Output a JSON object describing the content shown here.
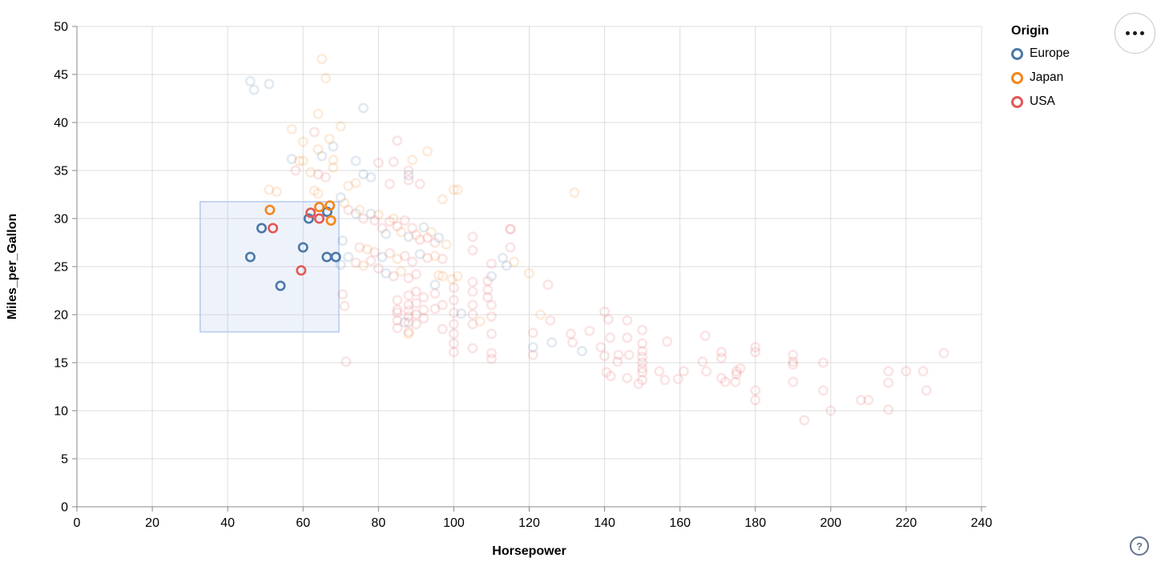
{
  "chart_data": {
    "type": "scatter",
    "title": "",
    "xlabel": "Horsepower",
    "ylabel": "Miles_per_Gallon",
    "xlim": [
      0,
      240
    ],
    "ylim": [
      0,
      50
    ],
    "xticks": [
      0,
      20,
      40,
      60,
      80,
      100,
      120,
      140,
      160,
      180,
      200,
      220,
      240
    ],
    "yticks": [
      0,
      5,
      10,
      15,
      20,
      25,
      30,
      35,
      40,
      45,
      50
    ],
    "grid": true,
    "legend": {
      "title": "Origin",
      "position": "top-right",
      "entries": [
        {
          "label": "Europe",
          "color": "#4c78a8"
        },
        {
          "label": "Japan",
          "color": "#f58518"
        },
        {
          "label": "USA",
          "color": "#e45756"
        }
      ]
    },
    "brush": {
      "x": [
        32.7,
        69.5
      ],
      "y": [
        18.2,
        31.75
      ]
    },
    "point_style": {
      "shape": "open-circle",
      "radius": 5.2,
      "stroke_width": 2.6,
      "selected_opacity": 1.0,
      "unselected_opacity": 0.16
    },
    "series": [
      {
        "name": "Europe",
        "color": "#4c78a8",
        "selected": [
          [
            46,
            26
          ],
          [
            49,
            29
          ],
          [
            54,
            23
          ],
          [
            60,
            27
          ],
          [
            61.5,
            30
          ],
          [
            66.4,
            30.7
          ],
          [
            66.3,
            26
          ],
          [
            68.7,
            26
          ]
        ],
        "unselected": [
          [
            46,
            44.3
          ],
          [
            47,
            43.4
          ],
          [
            51,
            44
          ],
          [
            76,
            41.5
          ],
          [
            68,
            37.5
          ],
          [
            57,
            36.2
          ],
          [
            65,
            36.5
          ],
          [
            74,
            36
          ],
          [
            78,
            34.3
          ],
          [
            88,
            34.5
          ],
          [
            76,
            34.6
          ],
          [
            70,
            32.2
          ],
          [
            74,
            30.5
          ],
          [
            78,
            30.5
          ],
          [
            82,
            28.4
          ],
          [
            88,
            28.1
          ],
          [
            92,
            29.1
          ],
          [
            96,
            28
          ],
          [
            81,
            26
          ],
          [
            91,
            26.3
          ],
          [
            72,
            26
          ],
          [
            82,
            24.3
          ],
          [
            95,
            23.1
          ],
          [
            102,
            20.1
          ],
          [
            87,
            19.2
          ],
          [
            113,
            25.9
          ],
          [
            114,
            25.1
          ],
          [
            110,
            24
          ],
          [
            121,
            16.6
          ],
          [
            126,
            17.1
          ],
          [
            134,
            16.2
          ],
          [
            70,
            25.2
          ],
          [
            70.5,
            27.7
          ]
        ]
      },
      {
        "name": "Japan",
        "color": "#f58518",
        "selected": [
          [
            51.2,
            30.9
          ],
          [
            64.3,
            31.2
          ],
          [
            67.1,
            31.35
          ],
          [
            67.4,
            29.8
          ]
        ],
        "unselected": [
          [
            65,
            46.6
          ],
          [
            66,
            44.6
          ],
          [
            64,
            40.9
          ],
          [
            57,
            39.3
          ],
          [
            60,
            38
          ],
          [
            70,
            39.6
          ],
          [
            67,
            38.3
          ],
          [
            64,
            37.2
          ],
          [
            60,
            36
          ],
          [
            59,
            36
          ],
          [
            62,
            34.8
          ],
          [
            68,
            35.3
          ],
          [
            68,
            36.1
          ],
          [
            93,
            37
          ],
          [
            89,
            36.1
          ],
          [
            74,
            33.7
          ],
          [
            72,
            33.4
          ],
          [
            51,
            33
          ],
          [
            53,
            32.8
          ],
          [
            63,
            32.9
          ],
          [
            64,
            32.6
          ],
          [
            100,
            33
          ],
          [
            132,
            32.7
          ],
          [
            97,
            32
          ],
          [
            101,
            33
          ],
          [
            71,
            31.6
          ],
          [
            75,
            30.9
          ],
          [
            80,
            30.4
          ],
          [
            84,
            30
          ],
          [
            86,
            28.6
          ],
          [
            90,
            28.3
          ],
          [
            94,
            28.6
          ],
          [
            77,
            26.8
          ],
          [
            85,
            25.8
          ],
          [
            95,
            26.1
          ],
          [
            76,
            25.1
          ],
          [
            86,
            24.5
          ],
          [
            96,
            24.1
          ],
          [
            97,
            24
          ],
          [
            101,
            24
          ],
          [
            116,
            25.5
          ],
          [
            120,
            24.3
          ],
          [
            123,
            20
          ],
          [
            107,
            19.3
          ],
          [
            88,
            18
          ],
          [
            98,
            27.3
          ],
          [
            99.5,
            23.7
          ]
        ]
      },
      {
        "name": "USA",
        "color": "#e45756",
        "selected": [
          [
            52,
            29
          ],
          [
            59.5,
            24.6
          ],
          [
            62,
            30.6
          ],
          [
            64.3,
            30
          ]
        ],
        "unselected": [
          [
            63,
            39
          ],
          [
            85,
            38.1
          ],
          [
            80,
            35.8
          ],
          [
            84,
            35.9
          ],
          [
            88,
            35
          ],
          [
            83,
            33.6
          ],
          [
            91,
            33.6
          ],
          [
            88,
            34
          ],
          [
            58,
            35
          ],
          [
            64,
            34.6
          ],
          [
            66,
            34.3
          ],
          [
            72,
            30.9
          ],
          [
            76,
            30
          ],
          [
            79,
            29.8
          ],
          [
            81,
            29
          ],
          [
            83,
            29.7
          ],
          [
            85,
            29.2
          ],
          [
            87,
            29.8
          ],
          [
            89,
            29
          ],
          [
            91,
            27.8
          ],
          [
            93,
            28
          ],
          [
            95,
            27.5
          ],
          [
            75,
            27
          ],
          [
            79,
            26.5
          ],
          [
            83,
            26.4
          ],
          [
            87,
            26.1
          ],
          [
            89,
            25.5
          ],
          [
            93,
            25.9
          ],
          [
            97,
            25.8
          ],
          [
            74,
            25.4
          ],
          [
            78,
            25.6
          ],
          [
            80,
            24.8
          ],
          [
            84,
            24
          ],
          [
            88,
            23.8
          ],
          [
            90,
            24.2
          ],
          [
            105,
            28.1
          ],
          [
            105,
            26.7
          ],
          [
            115,
            28.9
          ],
          [
            115,
            27
          ],
          [
            110,
            25.3
          ],
          [
            109,
            23.5
          ],
          [
            105,
            23.4
          ],
          [
            105,
            22.4
          ],
          [
            109,
            22.6
          ],
          [
            109,
            21.8
          ],
          [
            125,
            23.1
          ],
          [
            85,
            21.5
          ],
          [
            85,
            20.5
          ],
          [
            85,
            20.2
          ],
          [
            85,
            19.4
          ],
          [
            85,
            18.6
          ],
          [
            88,
            22
          ],
          [
            88,
            21
          ],
          [
            88,
            20.4
          ],
          [
            88,
            19.8
          ],
          [
            88,
            19.2
          ],
          [
            88,
            18.2
          ],
          [
            90,
            22.4
          ],
          [
            90,
            21.2
          ],
          [
            90,
            20
          ],
          [
            90,
            19
          ],
          [
            92,
            21.8
          ],
          [
            92,
            20.5
          ],
          [
            92,
            19.6
          ],
          [
            95,
            22.2
          ],
          [
            95,
            20.6
          ],
          [
            97,
            21
          ],
          [
            97,
            18.5
          ],
          [
            100,
            22.8
          ],
          [
            100,
            21.5
          ],
          [
            100,
            20.2
          ],
          [
            100,
            19
          ],
          [
            100,
            18
          ],
          [
            100,
            17
          ],
          [
            100,
            16.1
          ],
          [
            105,
            21
          ],
          [
            105,
            20
          ],
          [
            105,
            19
          ],
          [
            105,
            16.5
          ],
          [
            110,
            21
          ],
          [
            110,
            19.8
          ],
          [
            110,
            18
          ],
          [
            110,
            16
          ],
          [
            110,
            15.4
          ],
          [
            71.4,
            15.1
          ],
          [
            70.5,
            22.1
          ],
          [
            71,
            20.9
          ],
          [
            121,
            18.1
          ],
          [
            121,
            15.8
          ],
          [
            131,
            18
          ],
          [
            131.5,
            17.1
          ],
          [
            136,
            18.3
          ],
          [
            139,
            16.6
          ],
          [
            140,
            20.3
          ],
          [
            140,
            15.7
          ],
          [
            140.5,
            14
          ],
          [
            141,
            19.5
          ],
          [
            141.5,
            17.6
          ],
          [
            141.6,
            13.6
          ],
          [
            143.4,
            15.1
          ],
          [
            143.7,
            15.8
          ],
          [
            146,
            19.4
          ],
          [
            146,
            17.6
          ],
          [
            146.5,
            15.8
          ],
          [
            146,
            13.4
          ],
          [
            125.6,
            19.4
          ],
          [
            150,
            18.4
          ],
          [
            150,
            17
          ],
          [
            150,
            16.2
          ],
          [
            150,
            15.6
          ],
          [
            150,
            15
          ],
          [
            150,
            14.4
          ],
          [
            150,
            14
          ],
          [
            150,
            13.2
          ],
          [
            149,
            12.8
          ],
          [
            154.5,
            14.1
          ],
          [
            156,
            13.2
          ],
          [
            156.6,
            17.2
          ],
          [
            159.5,
            13.3
          ],
          [
            161,
            14.1
          ],
          [
            166.7,
            17.8
          ],
          [
            166,
            15.1
          ],
          [
            167,
            14.1
          ],
          [
            171,
            16.1
          ],
          [
            171,
            15.5
          ],
          [
            171,
            13.4
          ],
          [
            176,
            14.4
          ],
          [
            180,
            16.6
          ],
          [
            180,
            16.1
          ],
          [
            175,
            14.1
          ],
          [
            175,
            13.8
          ],
          [
            174.7,
            13
          ],
          [
            172,
            13
          ],
          [
            180,
            12.1
          ],
          [
            180,
            11.1
          ],
          [
            190,
            15.8
          ],
          [
            190,
            15.1
          ],
          [
            190,
            14.8
          ],
          [
            190,
            13
          ],
          [
            198,
            15
          ],
          [
            198,
            12.1
          ],
          [
            200,
            10
          ],
          [
            193,
            9
          ],
          [
            208,
            11.1
          ],
          [
            210,
            11.1
          ],
          [
            215.3,
            14.1
          ],
          [
            215.3,
            12.9
          ],
          [
            215.3,
            10.1
          ],
          [
            220,
            14.1
          ],
          [
            224.5,
            14.1
          ],
          [
            225.4,
            12.1
          ],
          [
            230,
            16
          ],
          [
            115,
            28.9
          ]
        ]
      }
    ],
    "style_colors": {
      "grid": "#dddddd",
      "axis": "#888888",
      "label": "#000000",
      "brush_fill": "rgba(150,180,230,0.16)",
      "brush_stroke": "#b5c9ef"
    }
  },
  "controls": {
    "help_glyph": "?"
  }
}
